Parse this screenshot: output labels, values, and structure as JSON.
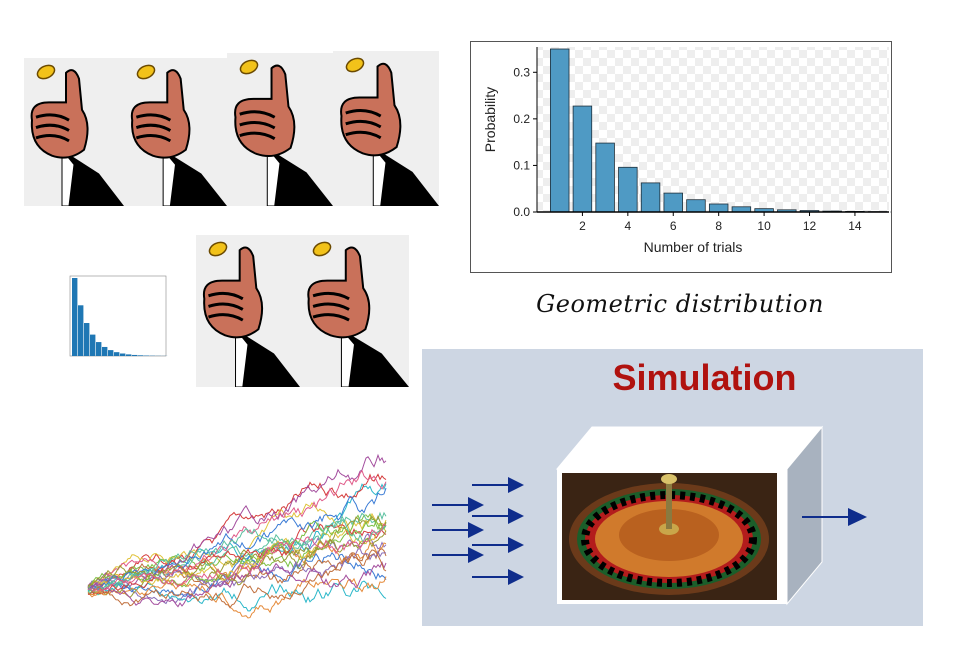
{
  "coin_flip_figures": [
    {
      "icon": "thumb-flip-coin-icon"
    },
    {
      "icon": "thumb-flip-coin-icon"
    },
    {
      "icon": "thumb-flip-coin-icon"
    },
    {
      "icon": "thumb-flip-coin-icon"
    },
    {
      "icon": "thumb-flip-coin-icon"
    },
    {
      "icon": "thumb-flip-coin-icon"
    }
  ],
  "geometric": {
    "caption": "Geometric distribution",
    "colors": {
      "bar": "#4f9ac4",
      "bar_edge": "#1f2f3a"
    }
  },
  "chart_data": {
    "type": "bar",
    "xlabel": "Number of trials",
    "ylabel": "Probability",
    "x": [
      1,
      2,
      3,
      4,
      5,
      6,
      7,
      8,
      9,
      10,
      11,
      12,
      13,
      14,
      15,
      16
    ],
    "values": [
      0.35,
      0.2275,
      0.148,
      0.096,
      0.0625,
      0.0406,
      0.0264,
      0.0172,
      0.0112,
      0.0072,
      0.0047,
      0.0031,
      0.002,
      0.0013,
      0.0008,
      0.0005
    ],
    "xticks": [
      "2",
      "4",
      "6",
      "8",
      "10",
      "12",
      "14"
    ],
    "yticks": [
      "0.0",
      "0.1",
      "0.2",
      "0.3"
    ],
    "xlim": [
      0,
      15.5
    ],
    "ylim": [
      0,
      0.35
    ],
    "grid": "checkerboard background"
  },
  "simulation": {
    "title": "Simulation",
    "colors": {
      "panel": "#cdd6e3",
      "title": "#b0120f",
      "arrow": "#0f2d8c"
    }
  },
  "random_walks": {
    "colors": [
      "#2ab7c9",
      "#8a6cb8",
      "#d43b3b",
      "#e0c23a",
      "#7cc043",
      "#e58a3a",
      "#3a7bd5",
      "#a34d9e",
      "#5bc0a0",
      "#c06f3d",
      "#999933",
      "#e05c8a"
    ]
  }
}
